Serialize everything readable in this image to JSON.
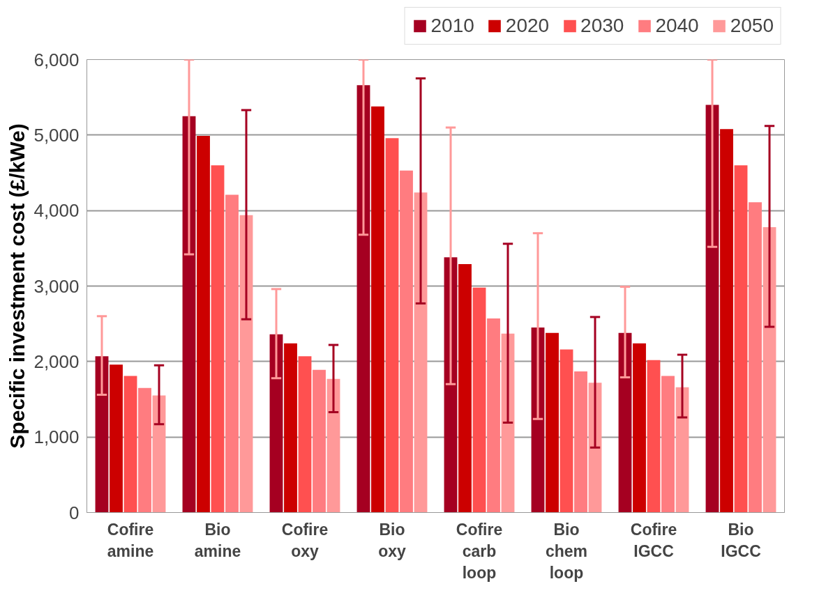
{
  "chart_data": {
    "type": "bar",
    "ylabel": "Specific investment cost (£/kWe)",
    "categories": [
      "Cofire amine",
      "Bio amine",
      "Cofire oxy",
      "Bio oxy",
      "Cofire carb loop",
      "Bio chem loop",
      "Cofire IGCC",
      "Bio IGCC"
    ],
    "series": [
      {
        "name": "2010",
        "color": "#a50021",
        "values": [
          2070,
          5250,
          2360,
          5660,
          3380,
          2450,
          2380,
          5400
        ],
        "errors": [
          [
            1560,
            2600
          ],
          [
            3420,
            6000
          ],
          [
            1780,
            2960
          ],
          [
            3680,
            6000
          ],
          [
            1700,
            5100
          ],
          [
            1240,
            3700
          ],
          [
            1790,
            2990
          ],
          [
            3520,
            6000
          ]
        ]
      },
      {
        "name": "2020",
        "color": "#cc0000",
        "values": [
          1960,
          4990,
          2240,
          5380,
          3290,
          2380,
          2240,
          5080
        ]
      },
      {
        "name": "2030",
        "color": "#ff5050",
        "values": [
          1810,
          4600,
          2070,
          4960,
          2980,
          2160,
          2020,
          4600
        ]
      },
      {
        "name": "2040",
        "color": "#ff7c80",
        "values": [
          1650,
          4210,
          1890,
          4530,
          2570,
          1870,
          1810,
          4110
        ]
      },
      {
        "name": "2050",
        "color": "#ff9999",
        "values": [
          1550,
          3940,
          1770,
          4240,
          2370,
          1720,
          1660,
          3780
        ],
        "errors": [
          [
            1170,
            1950
          ],
          [
            2560,
            5330
          ],
          [
            1330,
            2220
          ],
          [
            2770,
            5750
          ],
          [
            1190,
            3560
          ],
          [
            860,
            2590
          ],
          [
            1260,
            2090
          ],
          [
            2460,
            5120
          ]
        ]
      }
    ],
    "ylim": [
      0,
      6000
    ],
    "yticks": [
      0,
      {
        "value": 1000,
        "label": "1,000"
      },
      {
        "value": 2000,
        "label": "2,000"
      },
      {
        "value": 3000,
        "label": "3,000"
      },
      {
        "value": 4000,
        "label": "4,000"
      },
      {
        "value": 5000,
        "label": "5,000"
      },
      {
        "value": 6000,
        "label": "6,000"
      }
    ],
    "grid": "y",
    "legend": "top"
  }
}
